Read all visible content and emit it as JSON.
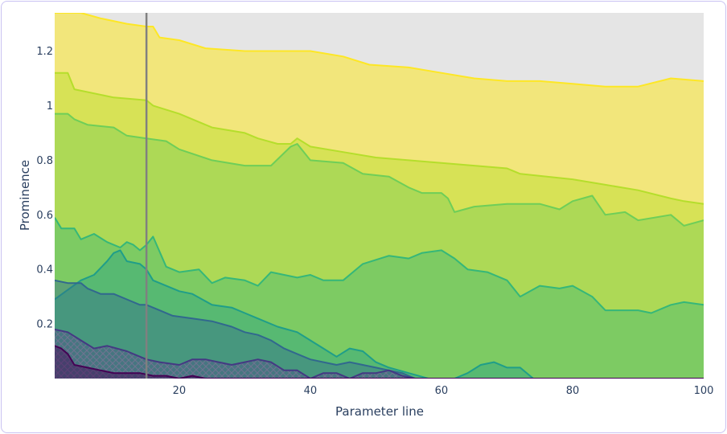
{
  "chart_data": {
    "type": "area",
    "xlabel": "Parameter line",
    "ylabel": "Prominence",
    "xlim": [
      1,
      100
    ],
    "ylim": [
      0,
      1.34
    ],
    "xticks": [
      20,
      40,
      60,
      80,
      100
    ],
    "yticks": [
      0.2,
      0.4,
      0.6,
      0.8,
      1,
      1.2
    ],
    "xtick_labels": [
      "20",
      "40",
      "60",
      "80",
      "100"
    ],
    "ytick_labels": [
      "0.2",
      "0.4",
      "0.6",
      "0.8",
      "1",
      "1.2"
    ],
    "background": "#e5e5e5",
    "grid": false,
    "marker_line_x": 15,
    "series": [
      {
        "color": "#fde725",
        "fill": "rgba(253,231,37,0.55)",
        "points": [
          [
            1,
            1.34
          ],
          [
            5,
            1.34
          ],
          [
            8,
            1.32
          ],
          [
            12,
            1.3
          ],
          [
            15,
            1.29
          ],
          [
            16,
            1.29
          ],
          [
            17,
            1.25
          ],
          [
            20,
            1.24
          ],
          [
            24,
            1.21
          ],
          [
            30,
            1.2
          ],
          [
            40,
            1.2
          ],
          [
            45,
            1.18
          ],
          [
            49,
            1.15
          ],
          [
            55,
            1.14
          ],
          [
            60,
            1.12
          ],
          [
            65,
            1.1
          ],
          [
            70,
            1.09
          ],
          [
            75,
            1.09
          ],
          [
            80,
            1.08
          ],
          [
            85,
            1.07
          ],
          [
            90,
            1.07
          ],
          [
            95,
            1.1
          ],
          [
            100,
            1.09
          ]
        ]
      },
      {
        "color": "#b5de2b",
        "fill": "rgba(181,222,43,0.45)",
        "points": [
          [
            1,
            1.12
          ],
          [
            3,
            1.12
          ],
          [
            4,
            1.06
          ],
          [
            10,
            1.03
          ],
          [
            15,
            1.02
          ],
          [
            16,
            1.0
          ],
          [
            20,
            0.97
          ],
          [
            25,
            0.92
          ],
          [
            30,
            0.9
          ],
          [
            32,
            0.88
          ],
          [
            35,
            0.86
          ],
          [
            37,
            0.86
          ],
          [
            38,
            0.88
          ],
          [
            40,
            0.85
          ],
          [
            45,
            0.83
          ],
          [
            50,
            0.81
          ],
          [
            55,
            0.8
          ],
          [
            60,
            0.79
          ],
          [
            65,
            0.78
          ],
          [
            70,
            0.77
          ],
          [
            72,
            0.75
          ],
          [
            80,
            0.73
          ],
          [
            85,
            0.71
          ],
          [
            90,
            0.69
          ],
          [
            95,
            0.66
          ],
          [
            97,
            0.65
          ],
          [
            100,
            0.64
          ]
        ]
      },
      {
        "color": "#6ece58",
        "fill": "rgba(110,206,88,0.40)",
        "points": [
          [
            1,
            0.97
          ],
          [
            3,
            0.97
          ],
          [
            4,
            0.95
          ],
          [
            6,
            0.93
          ],
          [
            10,
            0.92
          ],
          [
            12,
            0.89
          ],
          [
            15,
            0.88
          ],
          [
            18,
            0.87
          ],
          [
            20,
            0.84
          ],
          [
            25,
            0.8
          ],
          [
            30,
            0.78
          ],
          [
            34,
            0.78
          ],
          [
            37,
            0.85
          ],
          [
            38,
            0.86
          ],
          [
            40,
            0.8
          ],
          [
            45,
            0.79
          ],
          [
            48,
            0.75
          ],
          [
            52,
            0.74
          ],
          [
            55,
            0.7
          ],
          [
            57,
            0.68
          ],
          [
            60,
            0.68
          ],
          [
            61,
            0.66
          ],
          [
            62,
            0.61
          ],
          [
            65,
            0.63
          ],
          [
            70,
            0.64
          ],
          [
            75,
            0.64
          ],
          [
            78,
            0.62
          ],
          [
            80,
            0.65
          ],
          [
            83,
            0.67
          ],
          [
            85,
            0.6
          ],
          [
            88,
            0.61
          ],
          [
            90,
            0.58
          ],
          [
            95,
            0.6
          ],
          [
            97,
            0.56
          ],
          [
            100,
            0.58
          ]
        ]
      },
      {
        "color": "#35b779",
        "fill": "rgba(53,183,121,0.40)",
        "points": [
          [
            1,
            0.59
          ],
          [
            2,
            0.55
          ],
          [
            4,
            0.55
          ],
          [
            5,
            0.51
          ],
          [
            7,
            0.53
          ],
          [
            9,
            0.5
          ],
          [
            11,
            0.48
          ],
          [
            12,
            0.5
          ],
          [
            13,
            0.49
          ],
          [
            14,
            0.47
          ],
          [
            15,
            0.49
          ],
          [
            16,
            0.52
          ],
          [
            18,
            0.41
          ],
          [
            20,
            0.39
          ],
          [
            23,
            0.4
          ],
          [
            25,
            0.35
          ],
          [
            27,
            0.37
          ],
          [
            30,
            0.36
          ],
          [
            32,
            0.34
          ],
          [
            34,
            0.39
          ],
          [
            36,
            0.38
          ],
          [
            38,
            0.37
          ],
          [
            40,
            0.38
          ],
          [
            42,
            0.36
          ],
          [
            45,
            0.36
          ],
          [
            48,
            0.42
          ],
          [
            52,
            0.45
          ],
          [
            55,
            0.44
          ],
          [
            57,
            0.46
          ],
          [
            60,
            0.47
          ],
          [
            62,
            0.44
          ],
          [
            64,
            0.4
          ],
          [
            67,
            0.39
          ],
          [
            70,
            0.36
          ],
          [
            72,
            0.3
          ],
          [
            75,
            0.34
          ],
          [
            78,
            0.33
          ],
          [
            80,
            0.34
          ],
          [
            83,
            0.3
          ],
          [
            85,
            0.25
          ],
          [
            90,
            0.25
          ],
          [
            92,
            0.24
          ],
          [
            95,
            0.27
          ],
          [
            97,
            0.28
          ],
          [
            100,
            0.27
          ]
        ]
      },
      {
        "color": "#1f9e89",
        "fill": "rgba(31,158,137,0.40)",
        "points": [
          [
            1,
            0.29
          ],
          [
            5,
            0.36
          ],
          [
            7,
            0.38
          ],
          [
            9,
            0.43
          ],
          [
            10,
            0.46
          ],
          [
            11,
            0.47
          ],
          [
            12,
            0.43
          ],
          [
            14,
            0.42
          ],
          [
            15,
            0.4
          ],
          [
            16,
            0.36
          ],
          [
            18,
            0.34
          ],
          [
            20,
            0.32
          ],
          [
            22,
            0.31
          ],
          [
            25,
            0.27
          ],
          [
            28,
            0.26
          ],
          [
            30,
            0.24
          ],
          [
            32,
            0.22
          ],
          [
            35,
            0.19
          ],
          [
            38,
            0.17
          ],
          [
            40,
            0.14
          ],
          [
            42,
            0.11
          ],
          [
            44,
            0.08
          ],
          [
            46,
            0.11
          ],
          [
            48,
            0.1
          ],
          [
            50,
            0.06
          ],
          [
            52,
            0.04
          ],
          [
            55,
            0.02
          ],
          [
            58,
            0.0
          ],
          [
            62,
            0.0
          ],
          [
            64,
            0.02
          ],
          [
            66,
            0.05
          ],
          [
            68,
            0.06
          ],
          [
            70,
            0.04
          ],
          [
            72,
            0.04
          ],
          [
            74,
            0.0
          ],
          [
            100,
            0.0
          ]
        ]
      },
      {
        "color": "#31688e",
        "fill": "rgba(49,104,142,0.42)",
        "points": [
          [
            1,
            0.36
          ],
          [
            3,
            0.35
          ],
          [
            5,
            0.35
          ],
          [
            6,
            0.33
          ],
          [
            8,
            0.31
          ],
          [
            10,
            0.31
          ],
          [
            12,
            0.29
          ],
          [
            14,
            0.27
          ],
          [
            15,
            0.27
          ],
          [
            17,
            0.25
          ],
          [
            19,
            0.23
          ],
          [
            22,
            0.22
          ],
          [
            25,
            0.21
          ],
          [
            28,
            0.19
          ],
          [
            30,
            0.17
          ],
          [
            32,
            0.16
          ],
          [
            34,
            0.14
          ],
          [
            36,
            0.11
          ],
          [
            38,
            0.09
          ],
          [
            40,
            0.07
          ],
          [
            42,
            0.06
          ],
          [
            44,
            0.05
          ],
          [
            46,
            0.06
          ],
          [
            48,
            0.05
          ],
          [
            50,
            0.04
          ],
          [
            52,
            0.03
          ],
          [
            54,
            0.02
          ],
          [
            56,
            0.0
          ],
          [
            58,
            0.0
          ],
          [
            100,
            0.0
          ]
        ]
      },
      {
        "color": "#443983",
        "fill": "rgba(68,57,131,0.35)",
        "hatch": true,
        "points": [
          [
            1,
            0.18
          ],
          [
            3,
            0.17
          ],
          [
            5,
            0.14
          ],
          [
            7,
            0.11
          ],
          [
            9,
            0.12
          ],
          [
            12,
            0.1
          ],
          [
            14,
            0.08
          ],
          [
            15,
            0.07
          ],
          [
            17,
            0.06
          ],
          [
            20,
            0.05
          ],
          [
            22,
            0.07
          ],
          [
            24,
            0.07
          ],
          [
            26,
            0.06
          ],
          [
            28,
            0.05
          ],
          [
            30,
            0.06
          ],
          [
            32,
            0.07
          ],
          [
            34,
            0.06
          ],
          [
            36,
            0.03
          ],
          [
            38,
            0.03
          ],
          [
            40,
            0.0
          ],
          [
            42,
            0.02
          ],
          [
            44,
            0.02
          ],
          [
            46,
            0.0
          ],
          [
            48,
            0.02
          ],
          [
            50,
            0.02
          ],
          [
            52,
            0.03
          ],
          [
            54,
            0.01
          ],
          [
            56,
            0.0
          ],
          [
            100,
            0.0
          ]
        ]
      },
      {
        "color": "#440154",
        "fill": "rgba(68,1,84,0.45)",
        "points": [
          [
            1,
            0.12
          ],
          [
            2,
            0.11
          ],
          [
            3,
            0.09
          ],
          [
            4,
            0.05
          ],
          [
            6,
            0.04
          ],
          [
            8,
            0.03
          ],
          [
            10,
            0.02
          ],
          [
            12,
            0.02
          ],
          [
            14,
            0.02
          ],
          [
            16,
            0.01
          ],
          [
            18,
            0.01
          ],
          [
            20,
            0.0
          ],
          [
            22,
            0.01
          ],
          [
            24,
            0.0
          ],
          [
            100,
            0.0
          ]
        ]
      }
    ]
  }
}
